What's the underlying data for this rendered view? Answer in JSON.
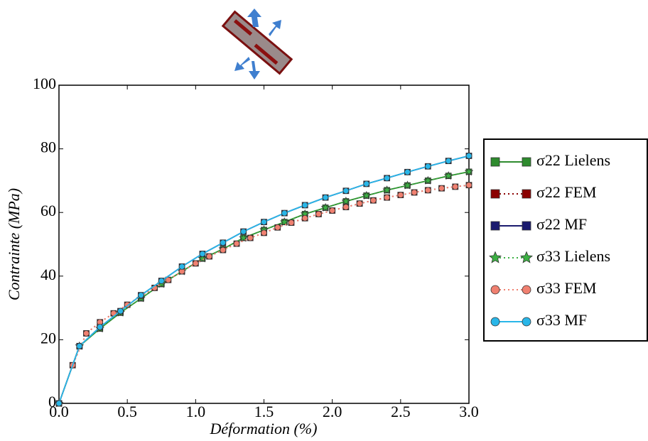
{
  "chart_data": {
    "type": "line",
    "xlabel": "Déformation (%)",
    "ylabel": "Contrainte (MPa)",
    "xlim": [
      0,
      3.0
    ],
    "ylim": [
      0,
      100
    ],
    "xticks": [
      {
        "value": 0,
        "label": "0.0"
      },
      {
        "value": 0.5,
        "label": "0.5"
      },
      {
        "value": 1,
        "label": "1.0"
      },
      {
        "value": 1.5,
        "label": "1.5"
      },
      {
        "value": 2,
        "label": "2.0"
      },
      {
        "value": 2.5,
        "label": "2.5"
      },
      {
        "value": 3,
        "label": "3.0"
      }
    ],
    "yticks": [
      0,
      20,
      40,
      60,
      80,
      100
    ],
    "legend": "outside-right",
    "series": [
      {
        "name": "σ22 Lielens",
        "color": "#2e8b2e",
        "linestyle": "solid",
        "marker": "square",
        "x": [
          0,
          0.15,
          0.3,
          0.45,
          0.6,
          0.75,
          0.9,
          1.05,
          1.2,
          1.35,
          1.5,
          1.65,
          1.8,
          1.95,
          2.1,
          2.25,
          2.4,
          2.55,
          2.7,
          2.85,
          3.0
        ],
        "values": [
          0,
          18,
          23.5,
          28.5,
          33,
          37.5,
          41.5,
          45.5,
          48.5,
          52,
          54.5,
          57,
          59.5,
          61.5,
          63.5,
          65.3,
          67,
          68.5,
          70,
          71.5,
          72.8
        ]
      },
      {
        "name": "σ22 FEM",
        "color": "#8b0000",
        "linestyle": "dotted",
        "marker": "square",
        "x": [
          0,
          0.1,
          0.2,
          0.3,
          0.4,
          0.5,
          0.6,
          0.7,
          0.8,
          0.9,
          1.0,
          1.1,
          1.2,
          1.3,
          1.4,
          1.5,
          1.6,
          1.7,
          1.8,
          1.9,
          2.0,
          2.1,
          2.2,
          2.3,
          2.4,
          2.5,
          2.6,
          2.7,
          2.8,
          2.9,
          3.0
        ],
        "values": [
          0,
          12,
          22,
          25.5,
          28.3,
          31,
          33.8,
          36.3,
          38.8,
          41.5,
          44,
          46.2,
          48.2,
          50.2,
          52,
          53.6,
          55.3,
          56.8,
          58.2,
          59.5,
          60.6,
          61.7,
          62.8,
          63.8,
          64.7,
          65.5,
          66.3,
          67,
          67.6,
          68.1,
          68.6
        ]
      },
      {
        "name": "σ22 MF",
        "color": "#1a1a6e",
        "linestyle": "solid",
        "marker": "square",
        "x": [
          0,
          0.15,
          0.3,
          0.45,
          0.6,
          0.75,
          0.9,
          1.05,
          1.2,
          1.35,
          1.5,
          1.65,
          1.8,
          1.95,
          2.1,
          2.25,
          2.4,
          2.55,
          2.7,
          2.85,
          3.0
        ],
        "values": [
          0,
          18,
          24,
          29,
          34,
          38.5,
          43,
          47,
          50.5,
          54,
          57,
          59.8,
          62.3,
          64.7,
          66.8,
          69,
          70.8,
          72.7,
          74.5,
          76.2,
          77.8
        ]
      },
      {
        "name": "σ33 Lielens",
        "color": "#3cb043",
        "linestyle": "dotted",
        "marker": "star",
        "x": [
          0,
          0.15,
          0.3,
          0.45,
          0.6,
          0.75,
          0.9,
          1.05,
          1.2,
          1.35,
          1.5,
          1.65,
          1.8,
          1.95,
          2.1,
          2.25,
          2.4,
          2.55,
          2.7,
          2.85,
          3.0
        ],
        "values": [
          0,
          18,
          23.5,
          28.5,
          33,
          37.5,
          41.5,
          45.5,
          48.5,
          52,
          54.5,
          57,
          59.5,
          61.5,
          63.5,
          65.3,
          67,
          68.5,
          70,
          71.5,
          72.8
        ]
      },
      {
        "name": "σ33 FEM",
        "color": "#f08070",
        "linestyle": "dotted",
        "marker": "circle",
        "x": [
          0,
          0.1,
          0.2,
          0.3,
          0.4,
          0.5,
          0.6,
          0.7,
          0.8,
          0.9,
          1.0,
          1.1,
          1.2,
          1.3,
          1.4,
          1.5,
          1.6,
          1.7,
          1.8,
          1.9,
          2.0,
          2.1,
          2.2,
          2.3,
          2.4,
          2.5,
          2.6,
          2.7,
          2.8,
          2.9,
          3.0
        ],
        "values": [
          0,
          12,
          22,
          25.5,
          28.3,
          31,
          33.8,
          36.3,
          38.8,
          41.5,
          44,
          46.2,
          48.2,
          50.2,
          52,
          53.6,
          55.3,
          56.8,
          58.2,
          59.5,
          60.6,
          61.7,
          62.8,
          63.8,
          64.7,
          65.5,
          66.3,
          67,
          67.6,
          68.1,
          68.6
        ]
      },
      {
        "name": "σ33 MF",
        "color": "#29b6e8",
        "linestyle": "solid",
        "marker": "circle",
        "x": [
          0,
          0.15,
          0.3,
          0.45,
          0.6,
          0.75,
          0.9,
          1.05,
          1.2,
          1.35,
          1.5,
          1.65,
          1.8,
          1.95,
          2.1,
          2.25,
          2.4,
          2.55,
          2.7,
          2.85,
          3.0
        ],
        "values": [
          0,
          18,
          24,
          29,
          34,
          38.5,
          43,
          47,
          50.5,
          54,
          57,
          59.8,
          62.3,
          64.7,
          66.8,
          69,
          70.8,
          72.7,
          74.5,
          76.2,
          77.8
        ]
      }
    ]
  }
}
